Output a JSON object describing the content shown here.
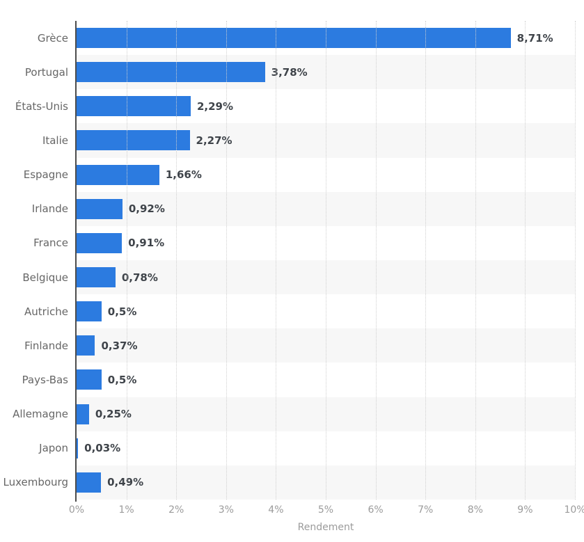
{
  "chart_data": {
    "type": "bar",
    "orientation": "horizontal",
    "title": "",
    "xlabel": "Rendement",
    "ylabel": "",
    "categories": [
      "Grèce",
      "Portugal",
      "États-Unis",
      "Italie",
      "Espagne",
      "Irlande",
      "France",
      "Belgique",
      "Autriche",
      "Finlande",
      "Pays-Bas",
      "Allemagne",
      "Japon",
      "Luxembourg"
    ],
    "values": [
      8.71,
      3.78,
      2.29,
      2.27,
      1.66,
      0.92,
      0.91,
      0.78,
      0.5,
      0.37,
      0.5,
      0.25,
      0.03,
      0.49
    ],
    "value_labels": [
      "8,71%",
      "3,78%",
      "2,29%",
      "2,27%",
      "1,66%",
      "0,92%",
      "0,91%",
      "0,78%",
      "0,5%",
      "0,37%",
      "0,5%",
      "0,25%",
      "0,03%",
      "0,49%"
    ],
    "x_ticks": [
      "0%",
      "1%",
      "2%",
      "3%",
      "4%",
      "5%",
      "6%",
      "7%",
      "8%",
      "9%",
      "10%"
    ],
    "xlim": [
      0,
      10
    ],
    "grid": "vertical-dotted",
    "legend": "none",
    "row_striping": "alternate-even-rows-shaded",
    "colors": {
      "bar": "#2c7be0",
      "row_stripe": "#f7f7f7",
      "axis_line": "#4d4d4d",
      "gridline": "#cfcfcf",
      "category_label": "#666666",
      "value_label": "#3f444a",
      "tick_label": "#9b9b9b",
      "background": "#ffffff"
    }
  }
}
